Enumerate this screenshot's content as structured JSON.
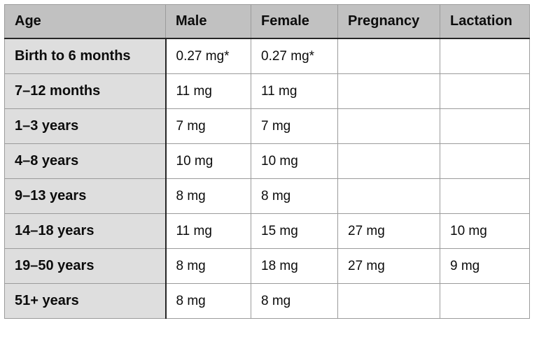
{
  "chart_data": {
    "type": "table",
    "columns": [
      "Age",
      "Male",
      "Female",
      "Pregnancy",
      "Lactation"
    ],
    "rows": [
      [
        "Birth to 6 months",
        "0.27 mg*",
        "0.27 mg*",
        "",
        ""
      ],
      [
        "7–12 months",
        "11 mg",
        "11 mg",
        "",
        ""
      ],
      [
        "1–3 years",
        "7 mg",
        "7 mg",
        "",
        ""
      ],
      [
        "4–8 years",
        "10 mg",
        "10 mg",
        "",
        ""
      ],
      [
        "9–13 years",
        "8 mg",
        "8 mg",
        "",
        ""
      ],
      [
        "14–18 years",
        "11 mg",
        "15 mg",
        "27 mg",
        "10 mg"
      ],
      [
        "19–50 years",
        "8 mg",
        "18 mg",
        "27 mg",
        "9 mg"
      ],
      [
        "51+ years",
        "8 mg",
        "8 mg",
        "",
        ""
      ]
    ],
    "footnote_marker": "*",
    "unit": "mg"
  },
  "colors": {
    "header_bg": "#c1c1c1",
    "age_column_bg": "#dedede",
    "cell_bg": "#ffffff",
    "grid_line": "#9b9b9b",
    "heavy_line": "#262626",
    "text": "#0c0c0c",
    "page_bg": "#ffffff"
  }
}
